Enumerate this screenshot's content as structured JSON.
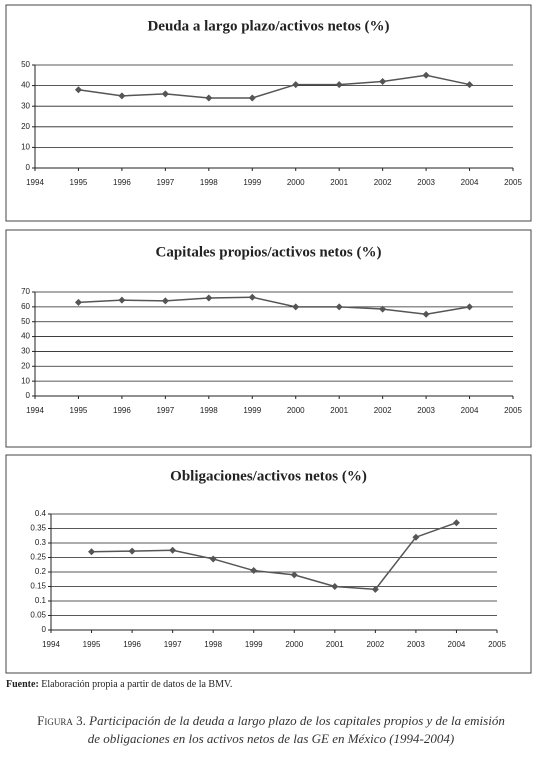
{
  "chart_data": [
    {
      "type": "line",
      "title": "Deuda a largo plazo/activos netos (%)",
      "x": [
        1995,
        1996,
        1997,
        1998,
        1999,
        2000,
        2001,
        2002,
        2003,
        2004
      ],
      "values": [
        38,
        35,
        36,
        34,
        34,
        40.5,
        40.5,
        42,
        45,
        40.5
      ],
      "color": "#555555",
      "xlim": [
        1994,
        2005
      ],
      "xticks": [
        1994,
        1995,
        1996,
        1997,
        1998,
        1999,
        2000,
        2001,
        2002,
        2003,
        2004,
        2005
      ],
      "ylim": [
        0,
        50
      ],
      "yticks": [
        0,
        10,
        20,
        30,
        40,
        50
      ],
      "grid": true
    },
    {
      "type": "line",
      "title": "Capitales propios/activos netos (%)",
      "x": [
        1995,
        1996,
        1997,
        1998,
        1999,
        2000,
        2001,
        2002,
        2003,
        2004
      ],
      "values": [
        63,
        64.5,
        64,
        66,
        66.5,
        60,
        60,
        58.5,
        55,
        60
      ],
      "color": "#555555",
      "xlim": [
        1994,
        2005
      ],
      "xticks": [
        1994,
        1995,
        1996,
        1997,
        1998,
        1999,
        2000,
        2001,
        2002,
        2003,
        2004,
        2005
      ],
      "ylim": [
        0,
        70
      ],
      "yticks": [
        0,
        10,
        20,
        30,
        40,
        50,
        60,
        70
      ],
      "grid": true
    },
    {
      "type": "line",
      "title": "Obligaciones/activos netos (%)",
      "x": [
        1995,
        1996,
        1997,
        1998,
        1999,
        2000,
        2001,
        2002,
        2003,
        2004
      ],
      "values": [
        0.27,
        0.272,
        0.275,
        0.245,
        0.205,
        0.19,
        0.15,
        0.14,
        0.32,
        0.37
      ],
      "color": "#555555",
      "xlim": [
        1994,
        2005
      ],
      "xticks": [
        1994,
        1995,
        1996,
        1997,
        1998,
        1999,
        2000,
        2001,
        2002,
        2003,
        2004,
        2005
      ],
      "ylim": [
        0,
        0.4
      ],
      "yticks": [
        0,
        0.05,
        0.1,
        0.15,
        0.2,
        0.25,
        0.3,
        0.35,
        0.4
      ],
      "grid": true
    }
  ],
  "source": {
    "label": "Fuente:",
    "text": "Elaboración propia a partir de datos de la BMV."
  },
  "caption": {
    "label": "Figura 3.",
    "text": "Participación de la deuda a largo plazo de los capitales propios y de la emisión de obligaciones en los activos netos de las GE en México (1994-2004)"
  }
}
